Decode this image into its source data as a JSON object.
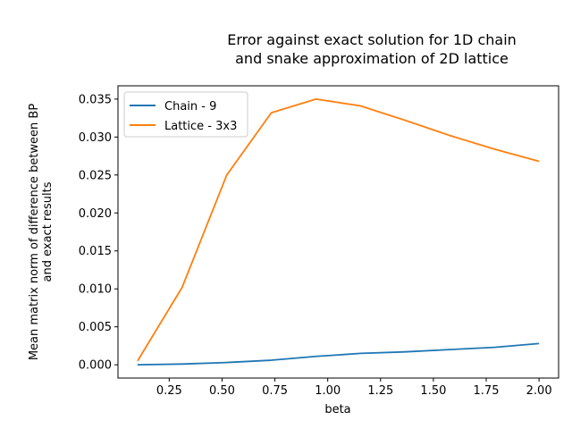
{
  "chart_data": {
    "type": "line",
    "title_lines": [
      "Error against exact solution for 1D chain",
      "and snake approximation of 2D lattice"
    ],
    "xlabel": "beta",
    "ylabel_lines": [
      "Mean matrix norm of difference between BP",
      "and exact results"
    ],
    "xlim": [
      0.0075,
      2.0925
    ],
    "ylim": [
      -0.00175,
      0.03675
    ],
    "xticks": [
      0.25,
      0.5,
      0.75,
      1.0,
      1.25,
      1.5,
      1.75,
      2.0
    ],
    "xtick_labels": [
      "0.25",
      "0.50",
      "0.75",
      "1.00",
      "1.25",
      "1.50",
      "1.75",
      "2.00"
    ],
    "yticks": [
      0.0,
      0.005,
      0.01,
      0.015,
      0.02,
      0.025,
      0.03,
      0.035
    ],
    "ytick_labels": [
      "0.000",
      "0.005",
      "0.010",
      "0.015",
      "0.020",
      "0.025",
      "0.030",
      "0.035"
    ],
    "grid": false,
    "legend_position": "top-left",
    "x": [
      0.1,
      0.3111,
      0.5222,
      0.7333,
      0.9444,
      1.1556,
      1.3667,
      1.5778,
      1.7889,
      2.0
    ],
    "series": [
      {
        "name": "Chain - 9",
        "color": "#1f77b4",
        "values": [
          0.0,
          0.0001,
          0.0003,
          0.0006,
          0.0011,
          0.0015,
          0.0017,
          0.002,
          0.0023,
          0.0028
        ]
      },
      {
        "name": "Lattice - 3x3",
        "color": "#ff7f0e",
        "values": [
          0.0005,
          0.0102,
          0.025,
          0.0332,
          0.035,
          0.0341,
          0.0322,
          0.0302,
          0.0284,
          0.0268
        ]
      }
    ]
  }
}
